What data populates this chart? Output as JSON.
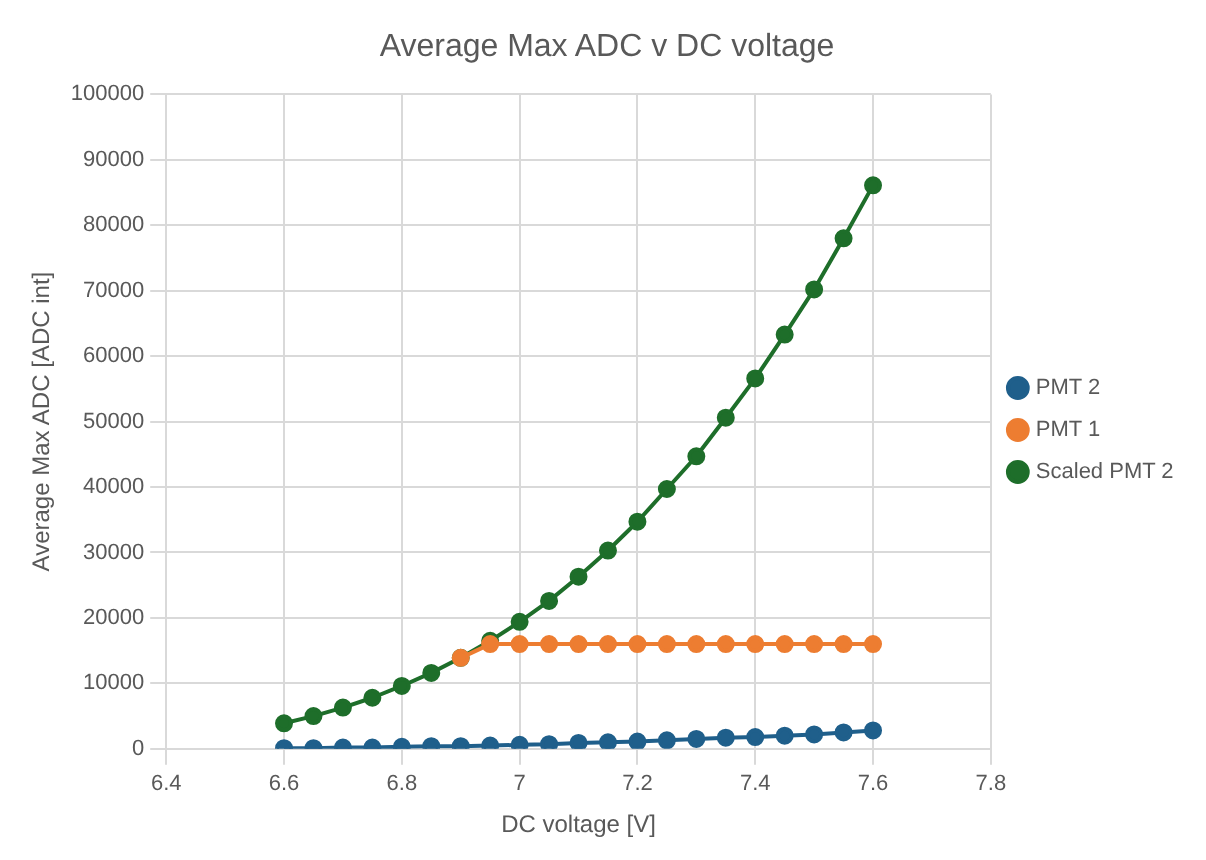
{
  "chart_data": {
    "type": "line",
    "title": "Average Max ADC v DC voltage",
    "xlabel": "DC voltage [V]",
    "ylabel": "Average Max ADC [ADC int]",
    "x": [
      6.6,
      6.65,
      6.7,
      6.75,
      6.8,
      6.85,
      6.9,
      6.95,
      7.0,
      7.05,
      7.1,
      7.15,
      7.2,
      7.25,
      7.3,
      7.35,
      7.4,
      7.45,
      7.5,
      7.55,
      7.6
    ],
    "series": [
      {
        "name": "PMT 2",
        "color": "#1f5f8b",
        "values": [
          100,
          100,
          200,
          200,
          300,
          400,
          400,
          500,
          600,
          700,
          900,
          1000,
          1100,
          1300,
          1500,
          1700,
          1800,
          2000,
          2200,
          2500,
          2800
        ]
      },
      {
        "name": "PMT 1",
        "color": "#ed7d31",
        "values": [
          null,
          null,
          null,
          null,
          null,
          null,
          13900,
          16000,
          16000,
          16000,
          16000,
          16000,
          16000,
          16000,
          16000,
          16000,
          16000,
          16000,
          16000,
          16000,
          16000
        ]
      },
      {
        "name": "Scaled PMT 2",
        "color": "#1e6e2a",
        "values": [
          3900,
          5000,
          6300,
          7800,
          9600,
          11600,
          13900,
          16500,
          19400,
          22600,
          26300,
          30300,
          34700,
          39700,
          44700,
          50600,
          56600,
          63300,
          70200,
          78000,
          86100
        ]
      }
    ],
    "xlim": [
      6.4,
      7.8
    ],
    "xticks": [
      6.4,
      6.6,
      6.8,
      7,
      7.2,
      7.4,
      7.6,
      7.8
    ],
    "ylim": [
      0,
      100000
    ],
    "yticks": [
      0,
      10000,
      20000,
      30000,
      40000,
      50000,
      60000,
      70000,
      80000,
      90000,
      100000
    ],
    "grid": true,
    "legend": "right",
    "marker": "circle",
    "line_style": "solid"
  }
}
